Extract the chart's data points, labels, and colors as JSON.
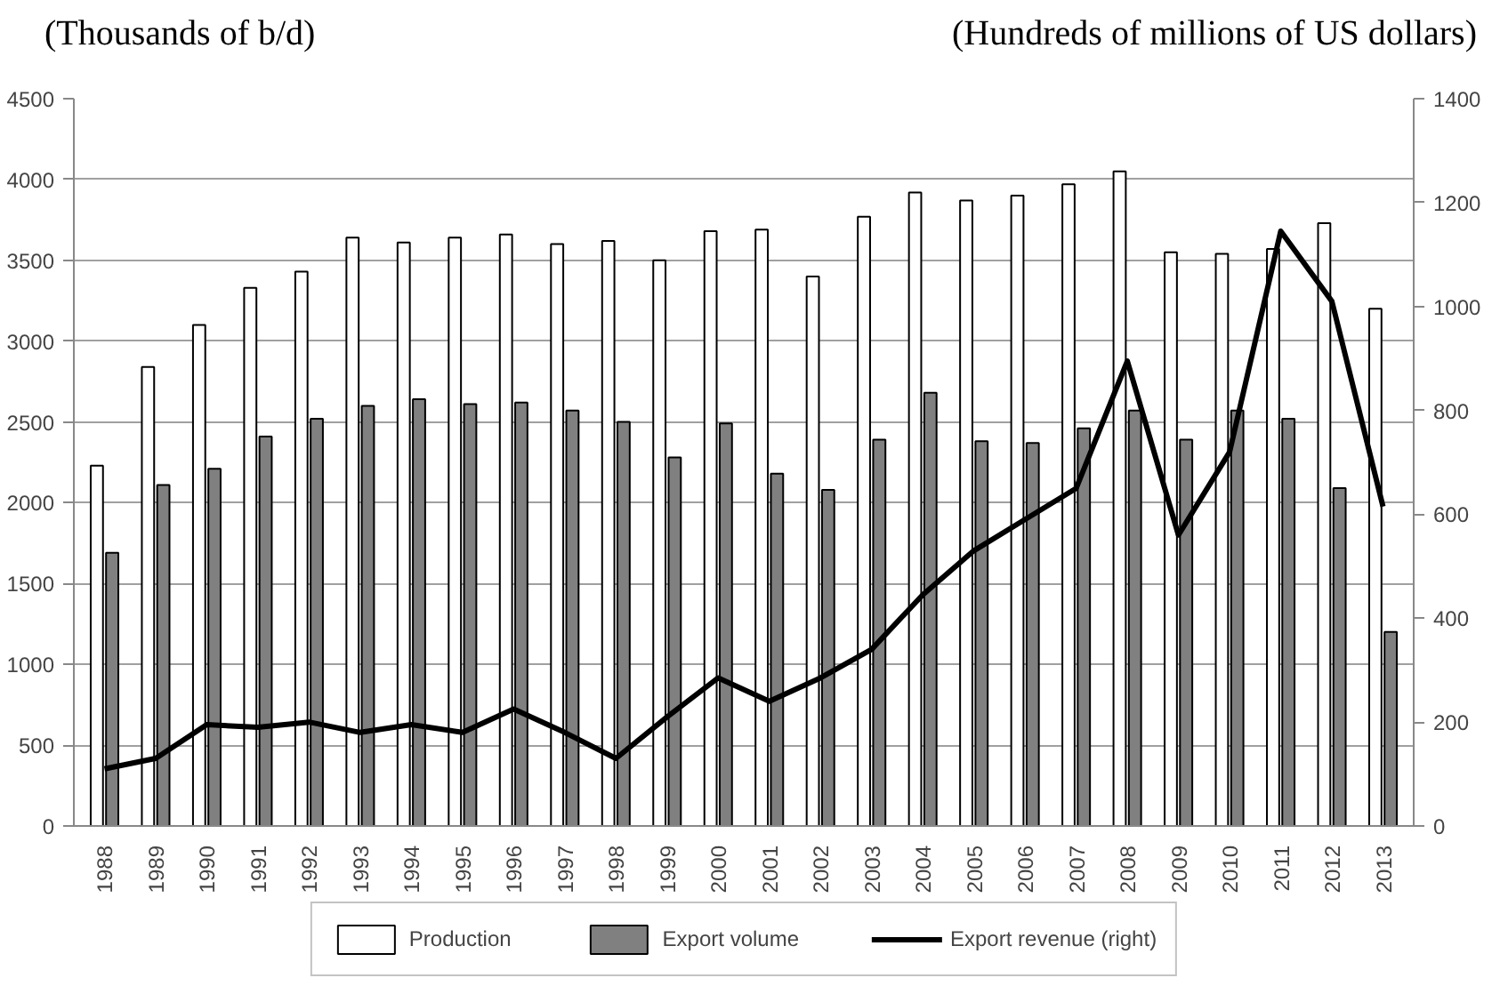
{
  "chart_data": {
    "type": "bar",
    "ylabel": "(Thousands of b/d)",
    "y2label": "(Hundreds of millions of US dollars)",
    "categories": [
      "1988",
      "1989",
      "1990",
      "1991",
      "1992",
      "1993",
      "1994",
      "1995",
      "1996",
      "1997",
      "1998",
      "1999",
      "2000",
      "2001",
      "2002",
      "2003",
      "2004",
      "2005",
      "2006",
      "2007",
      "2008",
      "2009",
      "2010",
      "2011",
      "2012",
      "2013"
    ],
    "series": [
      {
        "name": "Production",
        "color": "#ffffff",
        "values": [
          2230,
          2840,
          3100,
          3330,
          3430,
          3640,
          3610,
          3640,
          3660,
          3600,
          3620,
          3500,
          3680,
          3690,
          3400,
          3770,
          3920,
          3870,
          3900,
          3970,
          4050,
          3550,
          3540,
          3570,
          3730,
          3200
        ]
      },
      {
        "name": "Export volume",
        "color": "#808080",
        "values": [
          1690,
          2110,
          2210,
          2410,
          2520,
          2600,
          2640,
          2610,
          2620,
          2570,
          2500,
          2280,
          2490,
          2180,
          2080,
          2390,
          2680,
          2380,
          2370,
          2460,
          2570,
          2390,
          2570,
          2520,
          2090,
          1200
        ]
      },
      {
        "name": "Export revenue (right)",
        "type": "line",
        "axis": "y2",
        "color": "#000000",
        "values": [
          110,
          130,
          195,
          190,
          200,
          180,
          195,
          180,
          225,
          180,
          130,
          210,
          285,
          240,
          285,
          340,
          445,
          530,
          590,
          650,
          895,
          560,
          720,
          1145,
          1010,
          615
        ]
      }
    ],
    "ylim": [
      0,
      4500
    ],
    "yticks": [
      0,
      500,
      1000,
      1500,
      2000,
      2500,
      3000,
      3500,
      4000,
      4500
    ],
    "y2lim": [
      0,
      1400
    ],
    "y2ticks": [
      0,
      200,
      400,
      600,
      800,
      1000,
      1200,
      1400
    ],
    "grid": "y",
    "legend": "bottom"
  }
}
